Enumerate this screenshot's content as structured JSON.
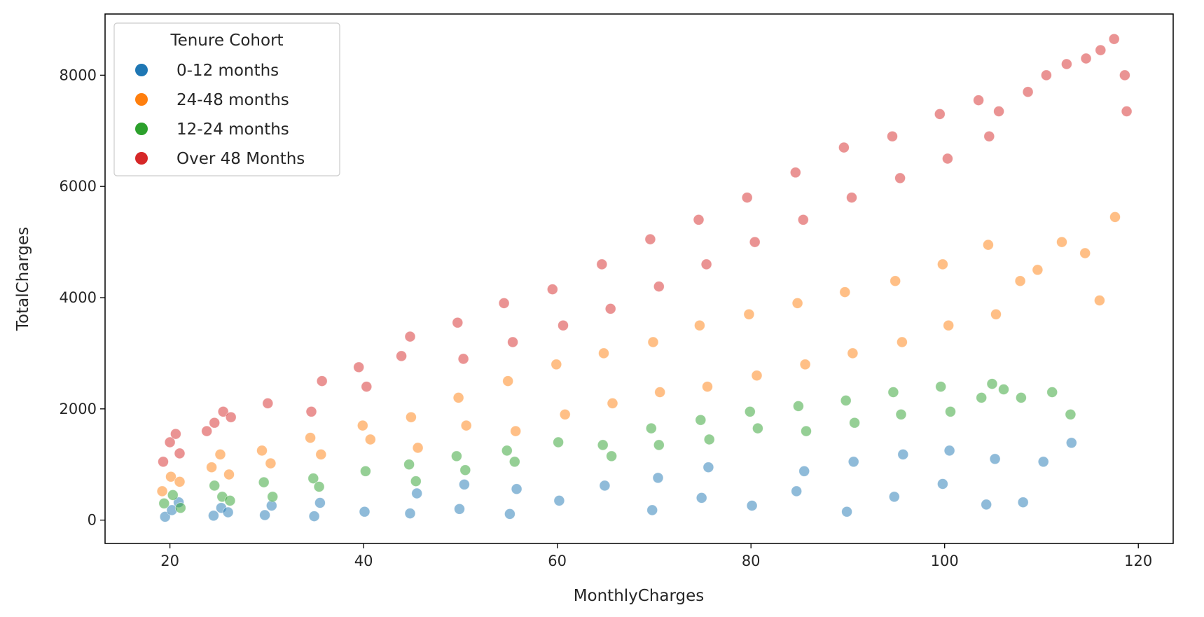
{
  "chart_data": {
    "type": "scatter",
    "title": "",
    "xlabel": "MonthlyCharges",
    "ylabel": "TotalCharges",
    "xlim": [
      13.3,
      123.6
    ],
    "ylim": [
      -420,
      9100
    ],
    "xticks": [
      20,
      40,
      60,
      80,
      100,
      120
    ],
    "yticks": [
      0,
      2000,
      4000,
      6000,
      8000
    ],
    "grid": false,
    "legend": {
      "title": "Tenure Cohort",
      "placement": "top-left",
      "entries": [
        "0-12 months",
        "24-48 months",
        "12-24 months",
        "Over 48 Months"
      ]
    },
    "marker_alpha": 0.5,
    "series": [
      {
        "name": "0-12 months",
        "color": "#1f77b4",
        "x": [
          19.5,
          20.2,
          20.9,
          24.5,
          25.3,
          26.0,
          29.8,
          30.5,
          34.9,
          35.5,
          40.1,
          44.8,
          45.5,
          49.9,
          50.4,
          55.1,
          55.8,
          60.2,
          64.9,
          69.8,
          70.4,
          74.9,
          75.6,
          80.1,
          84.7,
          85.5,
          89.9,
          90.6,
          94.8,
          95.7,
          99.8,
          100.5,
          104.3,
          105.2,
          108.1,
          110.2,
          113.1
        ],
        "y": [
          60,
          180,
          320,
          80,
          220,
          140,
          90,
          260,
          70,
          310,
          150,
          120,
          480,
          200,
          640,
          110,
          560,
          350,
          620,
          180,
          760,
          400,
          950,
          260,
          520,
          880,
          150,
          1050,
          420,
          1180,
          650,
          1250,
          280,
          1100,
          320,
          1050,
          1390
        ]
      },
      {
        "name": "24-48 months",
        "color": "#ff7f0e",
        "x": [
          19.2,
          20.1,
          21.0,
          24.3,
          25.2,
          26.1,
          29.5,
          30.4,
          34.5,
          35.6,
          39.9,
          40.7,
          44.9,
          45.6,
          49.8,
          50.6,
          54.9,
          55.7,
          59.9,
          60.8,
          64.8,
          65.7,
          69.9,
          70.6,
          74.7,
          75.5,
          79.8,
          80.6,
          84.8,
          85.6,
          89.7,
          90.5,
          94.9,
          95.6,
          99.8,
          100.4,
          104.5,
          105.3,
          107.8,
          109.6,
          112.1,
          114.5,
          116.0,
          117.6
        ],
        "y": [
          520,
          780,
          690,
          950,
          1180,
          820,
          1250,
          1020,
          1480,
          1180,
          1700,
          1450,
          1850,
          1300,
          2200,
          1700,
          2500,
          1600,
          2800,
          1900,
          3000,
          2100,
          3200,
          2300,
          3500,
          2400,
          3700,
          2600,
          3900,
          2800,
          4100,
          3000,
          4300,
          3200,
          4600,
          3500,
          4950,
          3700,
          4300,
          4500,
          5000,
          4800,
          3950,
          5450
        ]
      },
      {
        "name": "12-24 months",
        "color": "#2ca02c",
        "x": [
          19.4,
          20.3,
          21.1,
          24.6,
          25.4,
          26.2,
          29.7,
          30.6,
          34.8,
          35.4,
          40.2,
          44.7,
          45.4,
          49.6,
          50.5,
          54.8,
          55.6,
          60.1,
          64.7,
          65.6,
          69.7,
          70.5,
          74.8,
          75.7,
          79.9,
          80.7,
          84.9,
          85.7,
          89.8,
          90.7,
          94.7,
          95.5,
          99.6,
          100.6,
          103.8,
          104.9,
          106.1,
          107.9,
          111.1,
          113.0
        ],
        "y": [
          300,
          450,
          220,
          620,
          420,
          350,
          680,
          420,
          750,
          600,
          880,
          1000,
          700,
          1150,
          900,
          1250,
          1050,
          1400,
          1350,
          1150,
          1650,
          1350,
          1800,
          1450,
          1950,
          1650,
          2050,
          1600,
          2150,
          1750,
          2300,
          1900,
          2400,
          1950,
          2200,
          2450,
          2350,
          2200,
          2300,
          1900
        ]
      },
      {
        "name": "Over 48 Months",
        "color": "#d62728",
        "x": [
          19.3,
          20.0,
          20.6,
          21.0,
          23.8,
          24.6,
          25.5,
          26.3,
          30.1,
          34.6,
          35.7,
          39.5,
          40.3,
          43.9,
          44.8,
          49.7,
          50.3,
          54.5,
          55.4,
          59.5,
          60.6,
          64.6,
          65.5,
          69.6,
          70.5,
          74.6,
          75.4,
          79.6,
          80.4,
          84.6,
          85.4,
          89.6,
          90.4,
          94.6,
          95.4,
          99.5,
          100.3,
          103.5,
          104.6,
          105.6,
          108.6,
          110.5,
          112.6,
          114.6,
          116.1,
          117.5,
          118.6,
          118.8
        ],
        "y": [
          1050,
          1400,
          1550,
          1200,
          1600,
          1750,
          1950,
          1850,
          2100,
          1950,
          2500,
          2750,
          2400,
          2950,
          3300,
          3550,
          2900,
          3900,
          3200,
          4150,
          3500,
          4600,
          3800,
          5050,
          4200,
          5400,
          4600,
          5800,
          5000,
          6250,
          5400,
          6700,
          5800,
          6900,
          6150,
          7300,
          6500,
          7550,
          6900,
          7350,
          7700,
          8000,
          8200,
          8300,
          8450,
          8650,
          8000,
          7350
        ]
      }
    ]
  }
}
